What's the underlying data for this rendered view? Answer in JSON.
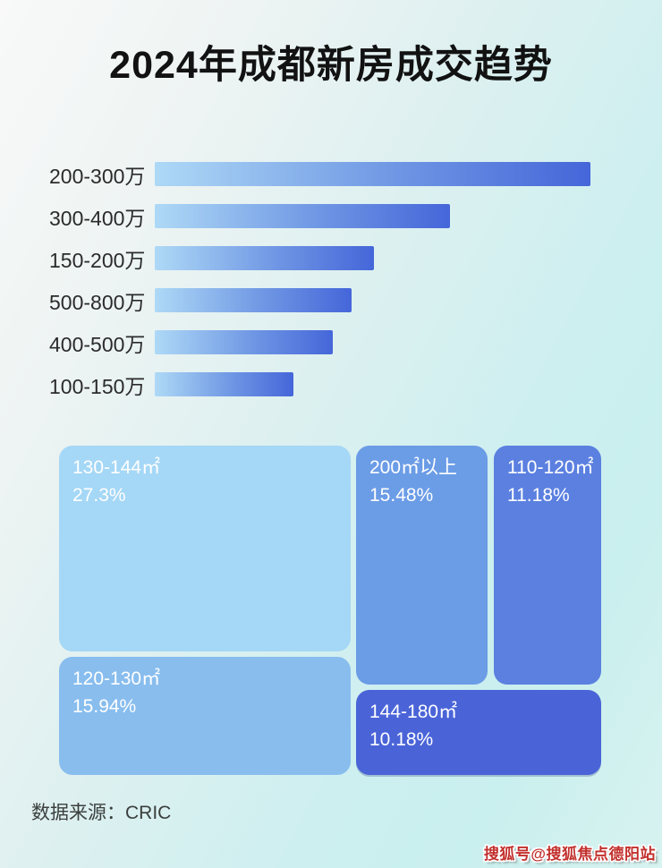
{
  "page": {
    "title": "2024年成都新房成交趋势",
    "source_label": "数据来源：CRIC",
    "watermark": "搜狐号@搜狐焦点德阳站"
  },
  "colors": {
    "bar_gradient_start": "#aed9f6",
    "bar_gradient_end": "#4566d9",
    "background_top_left": "#f8f9f8",
    "background_cyan": "#c9efee",
    "title_text": "#121212",
    "treemap_text": "#ffffff",
    "watermark_red": "#c2302c"
  },
  "chart_data": [
    {
      "type": "bar",
      "orientation": "horizontal",
      "title": "",
      "categories": [
        "200-300万",
        "300-400万",
        "150-200万",
        "500-800万",
        "400-500万",
        "100-150万"
      ],
      "values": [
        100,
        67.8,
        50.3,
        45.2,
        40.9,
        31.8
      ],
      "xlabel": "",
      "ylabel": "",
      "xlim": [
        0,
        100
      ],
      "grid": false,
      "legend_position": "none",
      "value_note": "bars carry no numeric labels in image; values are bar lengths as % of longest bar"
    },
    {
      "type": "treemap",
      "title": "",
      "legend_position": "none",
      "items": [
        {
          "label": "130-144㎡",
          "pct_label": "27.3%",
          "value": 27.3,
          "color": "#a5d7f6"
        },
        {
          "label": "120-130㎡",
          "pct_label": "15.94%",
          "value": 15.94,
          "color": "#88bdee"
        },
        {
          "label": "200㎡以上",
          "pct_label": "15.48%",
          "value": 15.48,
          "color": "#6b9ce6"
        },
        {
          "label": "110-120㎡",
          "pct_label": "11.18%",
          "value": 11.18,
          "color": "#5b80e0"
        },
        {
          "label": "144-180㎡",
          "pct_label": "10.18%",
          "value": 10.18,
          "color": "#4a64d8"
        }
      ]
    }
  ]
}
